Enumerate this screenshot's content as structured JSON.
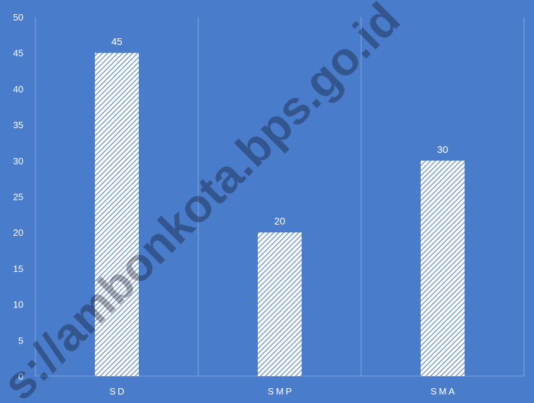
{
  "colors": {
    "background": "#4a7ccc",
    "bar_fill": "#ffffff",
    "bar_hatch": "#4a7ccc",
    "gridline": "#7ea3dc",
    "text": "#ffffff"
  },
  "watermark": {
    "text": "s://ambonkota.bps.go.id"
  },
  "chart_data": {
    "type": "bar",
    "title": "",
    "xlabel": "",
    "ylabel": "",
    "categories": [
      "SD",
      "SMP",
      "SMA"
    ],
    "values": [
      45,
      20,
      30
    ],
    "data_labels": [
      "45",
      "20",
      "30"
    ],
    "ylim": [
      0,
      50
    ],
    "yticks": [
      0,
      5,
      10,
      15,
      20,
      25,
      30,
      35,
      40,
      45,
      50
    ],
    "bar_style": "diagonal-hatch",
    "grid": "vertical separators between categories",
    "legend": "none"
  }
}
